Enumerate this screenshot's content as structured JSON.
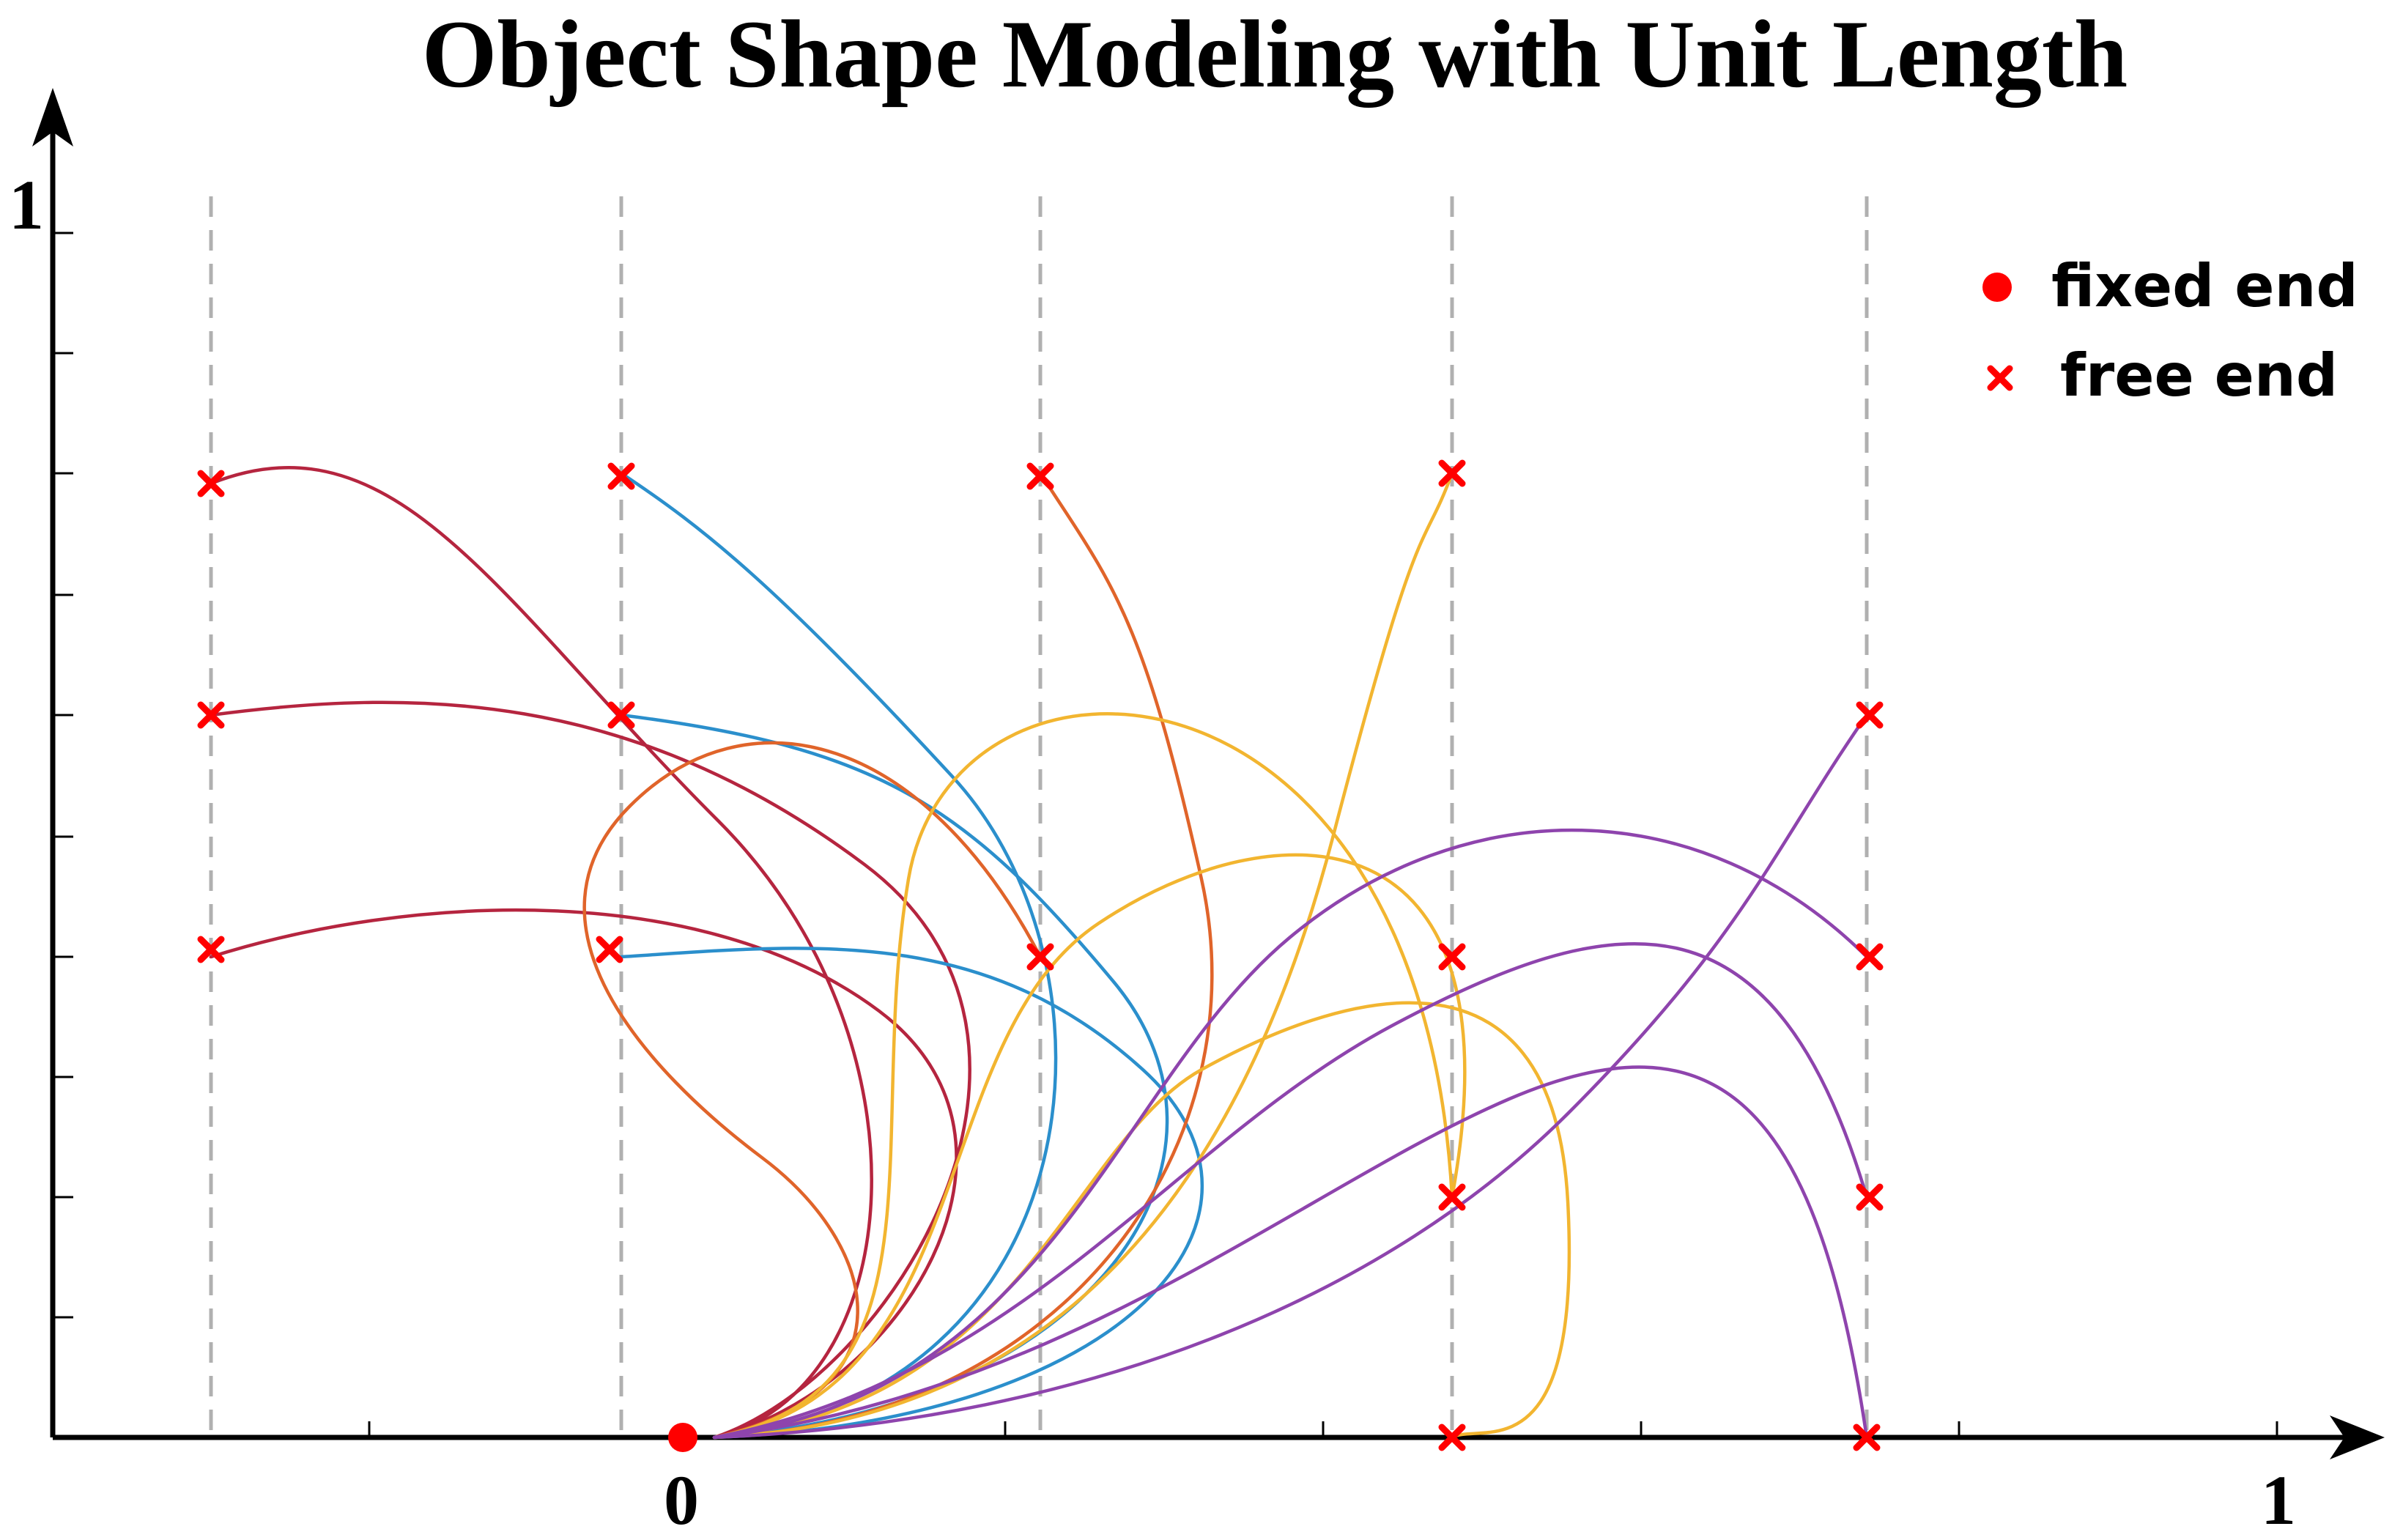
{
  "title": "Object Shape Modeling with Unit Length",
  "axes": {
    "x_origin_label": "0",
    "x_end_label": "1",
    "y_end_label": "1"
  },
  "legend": {
    "fixed_end_label": "fixed end",
    "free_end_label": "free end",
    "marker_color": "#ff0000"
  },
  "colors": {
    "crimson": "#b5253f",
    "blue": "#2b8fcc",
    "orange": "#e0642a",
    "gold": "#f2b530",
    "purple": "#8e44ad",
    "guide": "#b0b0b0"
  }
}
